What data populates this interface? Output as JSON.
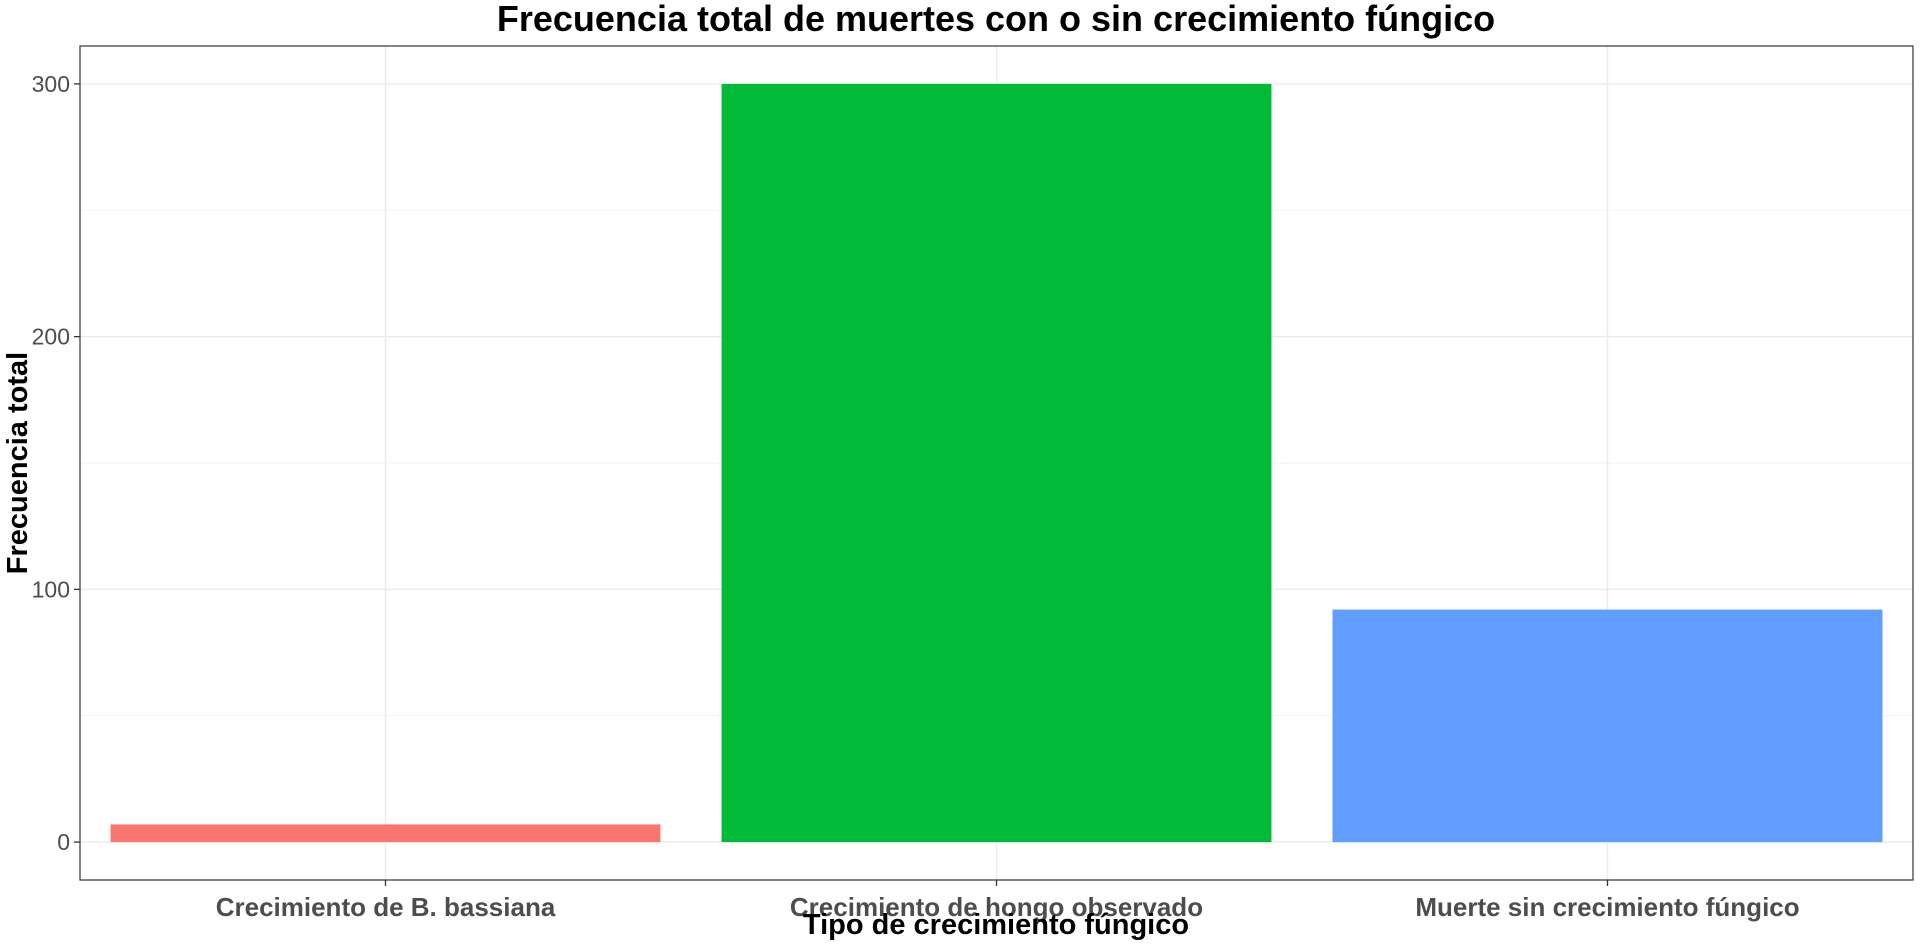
{
  "chart_data": {
    "type": "bar",
    "title": "Frecuencia total de muertes con o sin crecimiento fúngico",
    "xlabel": "Tipo de crecimiento fúngico",
    "ylabel": "Frecuencia total",
    "categories": [
      "Crecimiento de B. bassiana",
      "Crecimiento de hongo observado",
      "Muerte sin crecimiento fúngico"
    ],
    "values": [
      7,
      300,
      92
    ],
    "colors": [
      "#F8766D",
      "#00BA38",
      "#619CFF"
    ],
    "ylim": [
      -15,
      315
    ],
    "yticks": [
      0,
      100,
      200,
      300
    ],
    "y_minor_ticks": [
      50,
      150,
      250
    ],
    "grid": true,
    "legend": "none"
  }
}
